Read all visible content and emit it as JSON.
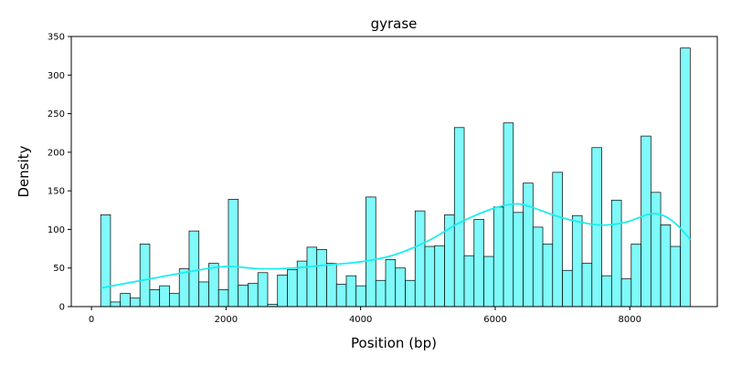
{
  "chart_data": {
    "type": "bar",
    "title": "gyrase",
    "xlabel": "Position (bp)",
    "ylabel": "Density",
    "xlim": [
      -300,
      9300
    ],
    "ylim": [
      0,
      350
    ],
    "xticks": [
      0,
      2000,
      4000,
      6000,
      8000
    ],
    "yticks": [
      0,
      50,
      100,
      150,
      200,
      250,
      300,
      350
    ],
    "grid": false,
    "bin_start": 137,
    "bin_width": 146,
    "bar_color": "#7ff9f9",
    "kde_color": "#19eeee",
    "values": [
      119,
      6,
      17,
      11,
      81,
      22,
      27,
      17,
      49,
      98,
      32,
      56,
      22,
      139,
      28,
      30,
      44,
      3,
      41,
      48,
      59,
      77,
      74,
      56,
      29,
      40,
      27,
      142,
      34,
      61,
      50,
      34,
      124,
      78,
      79,
      119,
      232,
      66,
      113,
      65,
      129,
      238,
      122,
      160,
      103,
      81,
      174,
      47,
      118,
      56,
      206,
      40,
      138,
      36,
      81,
      221,
      148,
      106,
      78,
      335
    ],
    "kde": {
      "x": [
        137,
        500,
        1000,
        1500,
        2000,
        2500,
        3000,
        3500,
        4000,
        4500,
        5000,
        5500,
        6000,
        6300,
        6500,
        7000,
        7500,
        7800,
        8000,
        8300,
        8500,
        8700,
        8897
      ],
      "y": [
        24,
        30,
        38,
        46,
        52,
        49,
        50,
        54,
        58,
        67,
        85,
        110,
        128,
        133,
        130,
        115,
        106,
        107,
        111,
        120,
        118,
        106,
        87
      ]
    }
  }
}
